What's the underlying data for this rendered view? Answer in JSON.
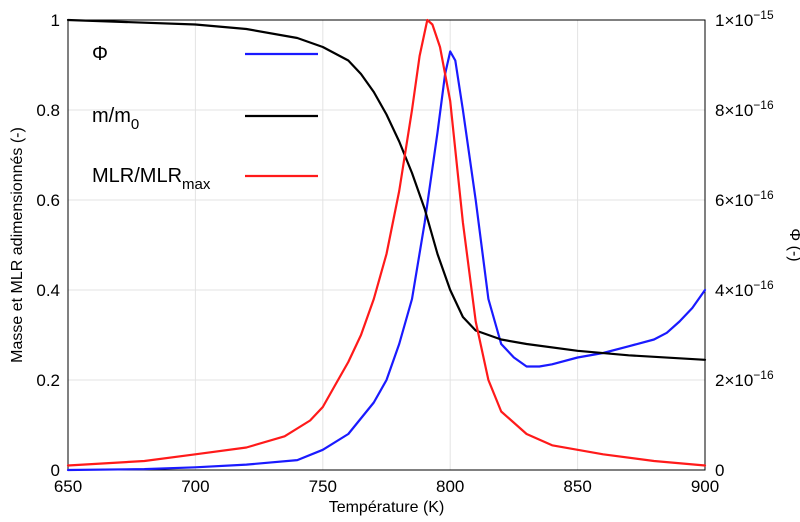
{
  "chart_data": {
    "type": "line",
    "xlabel": "Température (K)",
    "ylabel": "Masse et MLR adimensionnés (-)",
    "y2label": "Φ (-)",
    "xlim": [
      650,
      900
    ],
    "ylim": [
      0,
      1
    ],
    "y2lim": [
      0,
      1e-15
    ],
    "grid": true,
    "legend_position": "top-left",
    "x_ticks": [
      "650",
      "700",
      "750",
      "800",
      "850",
      "900"
    ],
    "y_ticks": [
      "0",
      "0.2",
      "0.4",
      "0.6",
      "0.8",
      "1"
    ],
    "y2_ticks": [
      {
        "value": 0,
        "base": "0",
        "exp": ""
      },
      {
        "value": 2e-16,
        "base": "2×10",
        "exp": "−16"
      },
      {
        "value": 4e-16,
        "base": "4×10",
        "exp": "−16"
      },
      {
        "value": 6e-16,
        "base": "6×10",
        "exp": "−16"
      },
      {
        "value": 8e-16,
        "base": "8×10",
        "exp": "−16"
      },
      {
        "value": 1e-15,
        "base": "1×10",
        "exp": "−15"
      }
    ],
    "legend": [
      {
        "main": "Φ",
        "sub": "",
        "color": "#1a1aff"
      },
      {
        "main": "m/m",
        "sub": "0",
        "color": "#000000"
      },
      {
        "main": "MLR/MLR",
        "sub": "max",
        "color": "#ff1a1a"
      }
    ],
    "series": [
      {
        "name": "Φ",
        "color": "#1a1aff",
        "axis": "right",
        "x": [
          650,
          680,
          700,
          720,
          740,
          750,
          760,
          770,
          775,
          780,
          785,
          790,
          795,
          798,
          800,
          802,
          805,
          810,
          815,
          820,
          825,
          830,
          835,
          840,
          850,
          860,
          870,
          880,
          885,
          890,
          895,
          900
        ],
        "y": [
          0,
          2e-18,
          6e-18,
          1.2e-17,
          2.2e-17,
          4.5e-17,
          8e-17,
          1.5e-16,
          2e-16,
          2.8e-16,
          3.8e-16,
          5.5e-16,
          7.5e-16,
          8.8e-16,
          9.3e-16,
          9.1e-16,
          8e-16,
          6e-16,
          3.8e-16,
          2.8e-16,
          2.5e-16,
          2.3e-16,
          2.3e-16,
          2.35e-16,
          2.5e-16,
          2.6e-16,
          2.75e-16,
          2.9e-16,
          3.05e-16,
          3.3e-16,
          3.6e-16,
          4e-16
        ]
      },
      {
        "name": "m/m0",
        "color": "#000000",
        "axis": "left",
        "x": [
          650,
          700,
          720,
          740,
          750,
          760,
          765,
          770,
          775,
          780,
          785,
          790,
          795,
          800,
          805,
          810,
          820,
          830,
          850,
          870,
          900
        ],
        "y": [
          1.0,
          0.99,
          0.98,
          0.96,
          0.94,
          0.91,
          0.88,
          0.84,
          0.79,
          0.73,
          0.66,
          0.58,
          0.48,
          0.4,
          0.34,
          0.31,
          0.29,
          0.28,
          0.265,
          0.255,
          0.245
        ]
      },
      {
        "name": "MLR/MLRmax",
        "color": "#ff1a1a",
        "axis": "left",
        "x": [
          650,
          680,
          700,
          720,
          735,
          745,
          750,
          755,
          760,
          765,
          770,
          775,
          780,
          785,
          788,
          791,
          793,
          796,
          800,
          805,
          810,
          815,
          820,
          830,
          840,
          860,
          880,
          900
        ],
        "y": [
          0.01,
          0.02,
          0.035,
          0.05,
          0.075,
          0.11,
          0.14,
          0.19,
          0.24,
          0.3,
          0.38,
          0.48,
          0.62,
          0.8,
          0.92,
          1.0,
          0.99,
          0.94,
          0.82,
          0.55,
          0.33,
          0.2,
          0.13,
          0.08,
          0.055,
          0.035,
          0.02,
          0.01
        ]
      }
    ]
  }
}
